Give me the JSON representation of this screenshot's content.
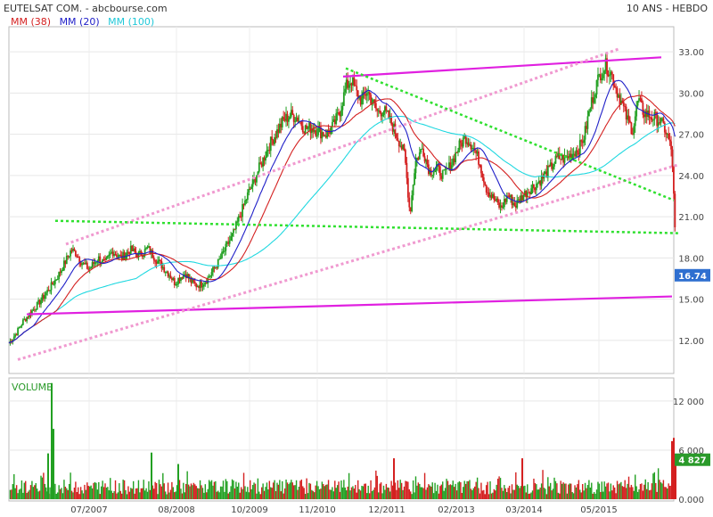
{
  "header": {
    "title": "EUTELSAT COM. - abcbourse.com",
    "period": "10 ANS - HEBDO"
  },
  "legend": [
    {
      "label": "MM (38)",
      "color": "#d42020"
    },
    {
      "label": "MM (20)",
      "color": "#2020c8"
    },
    {
      "label": "MM (100)",
      "color": "#20d8e0"
    }
  ],
  "colors": {
    "up": "#22a022",
    "down": "#d42020",
    "trend_solid": "#e020e0",
    "trend_pink": "#f09ad0",
    "trend_green": "#30e030",
    "last_badge": "#2f6fd0",
    "vol_badge": "#2a9a2a"
  },
  "chart_data": [
    {
      "type": "line",
      "title": "EUTELSAT COM.",
      "x_ticks": [
        "07/2007",
        "08/2008",
        "10/2009",
        "11/2010",
        "12/2011",
        "02/2013",
        "03/2014",
        "05/2015"
      ],
      "y_ticks": [
        "12.00",
        "15.00",
        "18.00",
        "21.00",
        "24.00",
        "27.00",
        "30.00",
        "33.00"
      ],
      "ylim": [
        10.5,
        34.5
      ],
      "last_value": "16.74",
      "price_path": {
        "x": [
          0,
          8,
          16,
          24,
          32,
          40,
          48,
          56,
          64,
          70,
          76,
          82,
          90,
          100,
          108,
          116,
          126,
          136,
          146,
          156,
          164,
          172,
          180,
          186,
          192,
          198,
          204,
          210,
          216,
          222,
          228,
          236,
          244,
          252,
          260,
          268,
          276,
          284,
          292,
          300,
          308,
          316,
          324,
          332,
          340,
          348,
          356,
          364,
          372,
          378,
          384,
          390,
          396,
          402,
          408,
          414,
          420,
          426,
          432,
          438,
          444,
          450,
          456,
          464,
          472,
          480,
          488,
          496,
          504,
          512,
          520,
          528,
          536,
          544,
          552,
          560,
          568,
          576,
          584,
          592,
          600,
          608,
          616,
          624,
          632,
          640,
          646,
          652,
          658,
          664,
          670,
          676,
          682,
          688,
          694,
          700,
          706,
          712,
          718,
          724,
          730,
          736,
          740,
          744,
          748,
          752
        ],
        "close": [
          11.8,
          12.5,
          13.4,
          14.0,
          14.6,
          15.3,
          16.0,
          16.8,
          17.8,
          18.6,
          18.3,
          17.6,
          17.2,
          18.0,
          17.6,
          18.5,
          18.0,
          18.6,
          18.2,
          18.7,
          18.0,
          17.4,
          16.8,
          16.2,
          16.6,
          16.9,
          16.3,
          16.0,
          16.1,
          16.4,
          17.0,
          17.8,
          18.8,
          19.8,
          21.2,
          22.6,
          23.8,
          25.0,
          26.2,
          27.1,
          28.0,
          28.4,
          28.2,
          27.4,
          27.5,
          27.2,
          27.0,
          27.6,
          28.8,
          30.4,
          31.0,
          30.0,
          29.4,
          30.2,
          29.3,
          28.6,
          28.8,
          28.2,
          27.4,
          26.5,
          25.5,
          21.2,
          25.0,
          26.0,
          24.3,
          24.5,
          24.0,
          24.8,
          26.0,
          26.8,
          26.2,
          25.0,
          23.0,
          22.3,
          21.6,
          22.6,
          21.8,
          22.5,
          23.0,
          23.4,
          23.9,
          24.6,
          25.3,
          25.2,
          25.6,
          26.0,
          27.0,
          28.9,
          30.4,
          31.5,
          32.0,
          31.4,
          30.2,
          29.2,
          28.0,
          27.3,
          29.5,
          28.6,
          28.4,
          28.2,
          28.0,
          27.4,
          26.6,
          25.6,
          19.0,
          16.74
        ]
      },
      "series": [
        {
          "name": "MM (20)"
        },
        {
          "name": "MM (38)"
        },
        {
          "name": "MM (100)"
        }
      ],
      "trendlines": [
        {
          "style": "solid-magenta",
          "x": [
            20,
            744
          ],
          "y": [
            13.9,
            15.2
          ]
        },
        {
          "style": "solid-magenta",
          "x": [
            375,
            732
          ],
          "y": [
            31.2,
            32.6
          ]
        },
        {
          "style": "dotted-pink",
          "x": [
            10,
            752
          ],
          "y": [
            10.6,
            24.8
          ]
        },
        {
          "style": "dotted-pink",
          "x": [
            64,
            684
          ],
          "y": [
            19.0,
            33.2
          ]
        },
        {
          "style": "dotted-green",
          "x": [
            52,
            752
          ],
          "y": [
            20.7,
            19.8
          ]
        },
        {
          "style": "dotted-green",
          "x": [
            378,
            746
          ],
          "y": [
            31.8,
            22.2
          ]
        }
      ]
    },
    {
      "type": "bar",
      "title": "VOLUME",
      "x_ticks": [
        "07/2007",
        "08/2008",
        "10/2009",
        "11/2010",
        "12/2011",
        "02/2013",
        "03/2014",
        "05/2015"
      ],
      "y_ticks": [
        "12 000",
        "6 000",
        "0.000"
      ],
      "ylim": [
        0,
        14500
      ],
      "last_value": "4 827",
      "spikes": [
        {
          "x": 48,
          "value": 14200,
          "up": true
        },
        {
          "x": 50,
          "value": 8600,
          "up": true
        },
        {
          "x": 44,
          "value": 5600,
          "up": true
        },
        {
          "x": 160,
          "value": 5700,
          "up": true
        },
        {
          "x": 190,
          "value": 4300,
          "up": true
        },
        {
          "x": 432,
          "value": 5000,
          "up": false
        },
        {
          "x": 576,
          "value": 5000,
          "up": false
        },
        {
          "x": 744,
          "value": 7100,
          "up": false
        },
        {
          "x": 746,
          "value": 7500,
          "up": false
        },
        {
          "x": 748,
          "value": 4827,
          "up": false
        }
      ]
    }
  ]
}
